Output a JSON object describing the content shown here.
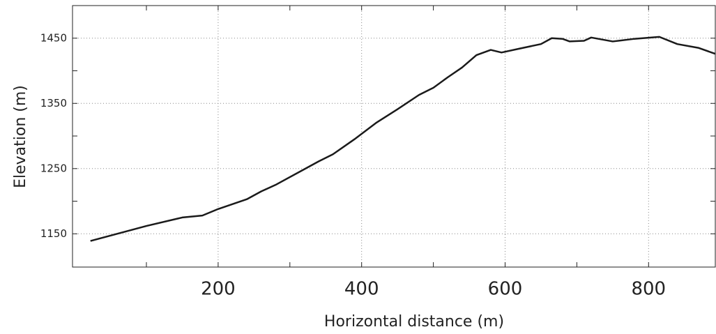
{
  "chart_data": {
    "type": "line",
    "xlabel": "Horizontal distance (m)",
    "ylabel": "Elevation (m)",
    "x": [
      22,
      100,
      150,
      178,
      200,
      240,
      260,
      280,
      320,
      340,
      360,
      390,
      420,
      450,
      480,
      500,
      520,
      540,
      560,
      580,
      595,
      620,
      650,
      665,
      680,
      690,
      710,
      720,
      750,
      780,
      815,
      840,
      870,
      893
    ],
    "series": [
      {
        "color": "#1a1a1a",
        "values": [
          1139,
          1162,
          1175,
          1178,
          1188,
          1203,
          1215,
          1225,
          1249,
          1261,
          1272,
          1295,
          1320,
          1341,
          1363,
          1374,
          1390,
          1405,
          1424,
          1432,
          1428,
          1434,
          1441,
          1450,
          1449,
          1445,
          1446,
          1451,
          1445,
          1449,
          1452,
          1441,
          1435,
          1426
        ]
      }
    ],
    "xlim": [
      -3,
      893
    ],
    "ylim": [
      1099,
      1500
    ],
    "xticks": [
      200,
      400,
      600,
      800
    ],
    "yticks": [
      1150,
      1250,
      1350,
      1450
    ],
    "xminor": [
      100,
      300,
      500,
      700
    ],
    "yminor": [
      1200,
      1300,
      1400
    ],
    "grid": true
  }
}
